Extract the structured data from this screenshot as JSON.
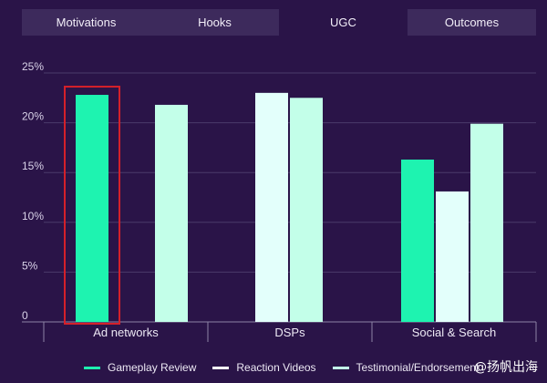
{
  "tabs": [
    {
      "label": "Motivations",
      "active": false
    },
    {
      "label": "Hooks",
      "active": false
    },
    {
      "label": "UGC",
      "active": true
    },
    {
      "label": "Outcomes",
      "active": false
    }
  ],
  "colors": {
    "background": "#2a1448",
    "tab_bar": "#3d2a5c",
    "highlight_box": "#d4202a",
    "series": [
      "#1ef3b0",
      "#e3fffb",
      "#c3ffe9"
    ]
  },
  "chart_data": {
    "type": "bar",
    "categories": [
      "Ad networks",
      "DSPs",
      "Social & Search"
    ],
    "series": [
      {
        "name": "Gameplay Review",
        "values": [
          22.8,
          null,
          16.3
        ]
      },
      {
        "name": "Reaction Videos",
        "values": [
          null,
          23.0,
          13.1
        ]
      },
      {
        "name": "Testimonial/Endorsement",
        "values": [
          21.8,
          22.5,
          19.9
        ]
      }
    ],
    "yticks": [
      "0",
      "5%",
      "10%",
      "15%",
      "20%",
      "25%"
    ],
    "ylim": [
      0,
      25
    ],
    "grid": true,
    "highlight": {
      "category": "Ad networks",
      "series": "Gameplay Review"
    }
  },
  "legend": [
    {
      "label": "Gameplay Review",
      "color": "#1ef3b0"
    },
    {
      "label": "Reaction Videos",
      "color": "#ffffff"
    },
    {
      "label": "Testimonial/Endorsement",
      "color": "#c3ffe9"
    }
  ],
  "watermark": "@扬帆出海"
}
